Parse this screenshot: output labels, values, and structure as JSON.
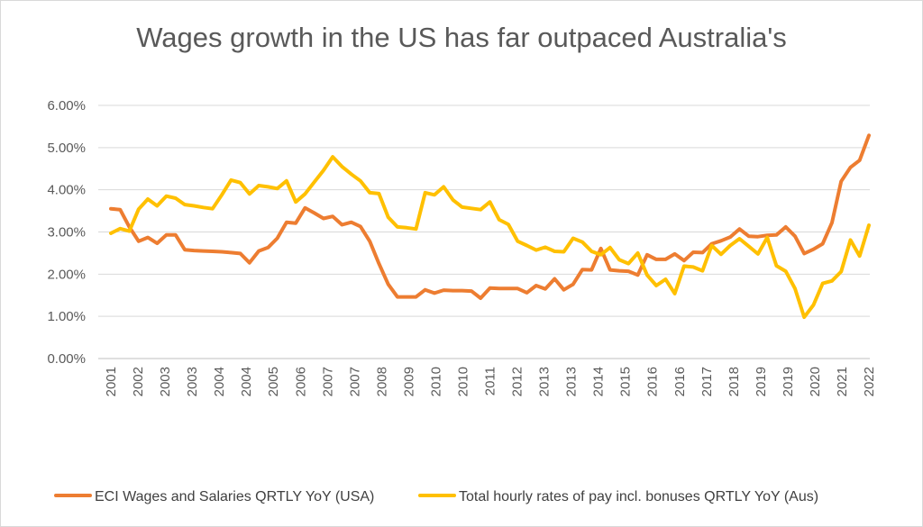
{
  "chart_data": {
    "type": "line",
    "title": "Wages growth in the US has far outpaced Australia's",
    "xlabel": "",
    "ylabel": "",
    "ylim": [
      0,
      0.06
    ],
    "y_ticks": [
      "0.00%",
      "1.00%",
      "2.00%",
      "3.00%",
      "4.00%",
      "5.00%",
      "6.00%"
    ],
    "x_tick_labels": [
      "2001",
      "2002",
      "2003",
      "2003",
      "2004",
      "2004",
      "2005",
      "2006",
      "2007",
      "2007",
      "2008",
      "2009",
      "2010",
      "2010",
      "2011",
      "2012",
      "2013",
      "2013",
      "2014",
      "2015",
      "2016",
      "2016",
      "2017",
      "2018",
      "2019",
      "2019",
      "2020",
      "2021",
      "2022"
    ],
    "grid": true,
    "legend_position": "bottom",
    "series": [
      {
        "name": "ECI Wages and Salaries QRTLY YoY (USA)",
        "color": "#ED7D31",
        "values": [
          0.0355,
          0.0353,
          0.0312,
          0.0278,
          0.0287,
          0.0273,
          0.0293,
          0.0293,
          0.0258,
          0.0256,
          0.0255,
          0.0254,
          0.0253,
          0.0251,
          0.0249,
          0.0227,
          0.0255,
          0.0263,
          0.0285,
          0.0323,
          0.0321,
          0.0357,
          0.0345,
          0.0332,
          0.0337,
          0.0317,
          0.0323,
          0.0313,
          0.0278,
          0.0225,
          0.0176,
          0.0146,
          0.0146,
          0.0146,
          0.0163,
          0.0155,
          0.0162,
          0.0161,
          0.0161,
          0.016,
          0.0143,
          0.0167,
          0.0166,
          0.0166,
          0.0166,
          0.0156,
          0.0173,
          0.0165,
          0.0189,
          0.0163,
          0.0176,
          0.0211,
          0.021,
          0.0261,
          0.021,
          0.0208,
          0.0207,
          0.0198,
          0.0246,
          0.0235,
          0.0235,
          0.0248,
          0.0232,
          0.0252,
          0.0251,
          0.0272,
          0.0279,
          0.0288,
          0.0307,
          0.029,
          0.0289,
          0.0292,
          0.0293,
          0.0312,
          0.029,
          0.0249,
          0.0259,
          0.0272,
          0.0322,
          0.042,
          0.0453,
          0.047,
          0.0529
        ]
      },
      {
        "name": "Total hourly rates of pay incl. bonuses QRTLY YoY (Aus)",
        "color": "#FFC000",
        "values": [
          0.0297,
          0.0308,
          0.0302,
          0.0354,
          0.0378,
          0.0362,
          0.0385,
          0.038,
          0.0365,
          0.0362,
          0.0358,
          0.0355,
          0.0388,
          0.0423,
          0.0417,
          0.039,
          0.041,
          0.0407,
          0.0403,
          0.0421,
          0.0371,
          0.039,
          0.0418,
          0.0446,
          0.0478,
          0.0455,
          0.0437,
          0.0421,
          0.0393,
          0.0391,
          0.0335,
          0.0312,
          0.031,
          0.0307,
          0.0393,
          0.0388,
          0.0407,
          0.0376,
          0.0359,
          0.0356,
          0.0353,
          0.0371,
          0.0329,
          0.0318,
          0.0278,
          0.0268,
          0.0257,
          0.0264,
          0.0254,
          0.0253,
          0.0285,
          0.0276,
          0.0254,
          0.0246,
          0.0263,
          0.0234,
          0.0225,
          0.025,
          0.0198,
          0.0173,
          0.0188,
          0.0154,
          0.0219,
          0.0217,
          0.0208,
          0.0268,
          0.0247,
          0.0268,
          0.0284,
          0.0266,
          0.0248,
          0.0287,
          0.022,
          0.0207,
          0.0166,
          0.0098,
          0.0127,
          0.0178,
          0.0184,
          0.0206,
          0.0281,
          0.0243,
          0.0316
        ]
      }
    ]
  }
}
